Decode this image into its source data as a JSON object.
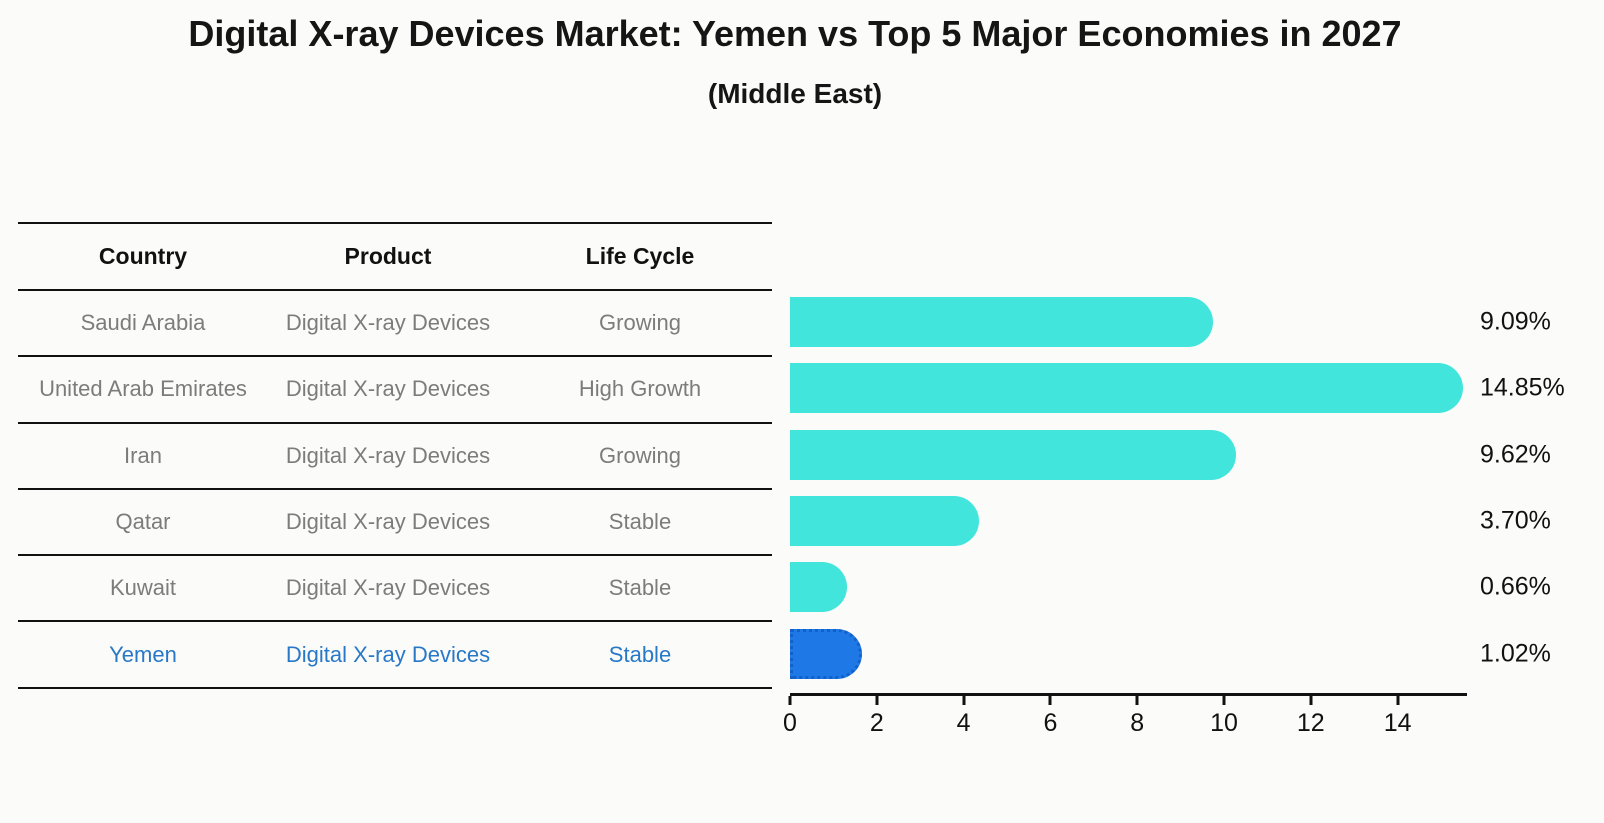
{
  "title": "Digital X-ray Devices Market: Yemen vs Top 5 Major Economies in 2027",
  "subtitle": "(Middle East)",
  "table": {
    "headers": [
      "Country",
      "Product",
      "Life Cycle"
    ],
    "rows": [
      {
        "country": "Saudi Arabia",
        "product": "Digital X-ray Devices",
        "life_cycle": "Growing",
        "highlight": false
      },
      {
        "country": "United Arab Emirates",
        "product": "Digital X-ray Devices",
        "life_cycle": "High Growth",
        "highlight": false
      },
      {
        "country": "Iran",
        "product": "Digital X-ray Devices",
        "life_cycle": "Growing",
        "highlight": false
      },
      {
        "country": "Qatar",
        "product": "Digital X-ray Devices",
        "life_cycle": "Stable",
        "highlight": false
      },
      {
        "country": "Kuwait",
        "product": "Digital X-ray Devices",
        "life_cycle": "Stable",
        "highlight": false
      },
      {
        "country": "Yemen",
        "product": "Digital X-ray Devices",
        "life_cycle": "Stable",
        "highlight": true
      }
    ]
  },
  "chart_data": {
    "type": "bar",
    "orientation": "horizontal",
    "title": "Digital X-ray Devices Market: Yemen vs Top 5 Major Economies in 2027 (Middle East)",
    "categories": [
      "Saudi Arabia",
      "United Arab Emirates",
      "Iran",
      "Qatar",
      "Kuwait",
      "Yemen"
    ],
    "values": [
      9.09,
      14.85,
      9.62,
      3.7,
      0.66,
      1.02
    ],
    "value_labels": [
      "9.09%",
      "14.85%",
      "9.62%",
      "3.70%",
      "0.66%",
      "1.02%"
    ],
    "highlight_index": 5,
    "xticks": [
      0,
      2,
      4,
      6,
      8,
      10,
      12,
      14
    ],
    "xlim": [
      0,
      15.6
    ],
    "grid": false,
    "legend": false,
    "xlabel": "",
    "ylabel": ""
  },
  "colors": {
    "bar": "#41e5dc",
    "highlight_bar": "#1e78e6",
    "highlight_text": "#2878c8",
    "table_text": "#7c7c7c",
    "axis_text": "#111111",
    "background": "#fbfbf9"
  }
}
